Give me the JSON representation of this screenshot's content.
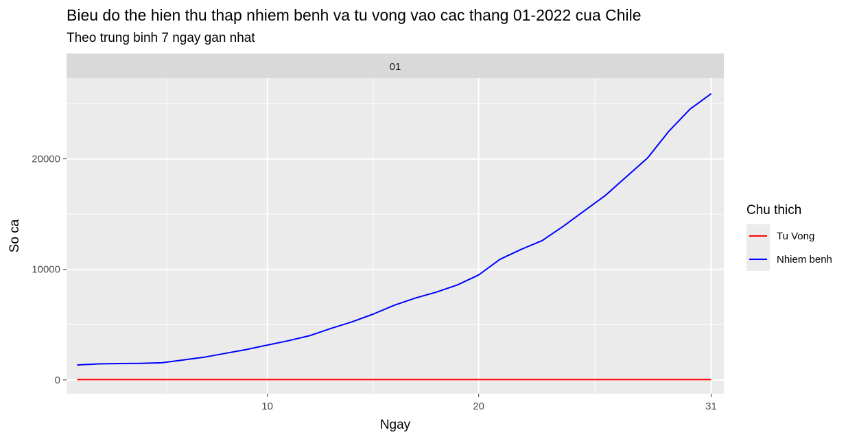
{
  "chart_data": {
    "type": "line",
    "title": "Bieu do the hien thu thap nhiem benh va tu vong vao cac thang 01-2022 cua Chile",
    "subtitle": "Theo trung binh 7 ngay gan nhat",
    "facet_label": "01",
    "xlabel": "Ngay",
    "ylabel": "So ca",
    "xlim": [
      0.5,
      31.6
    ],
    "ylim": [
      -1250,
      27300
    ],
    "x_ticks": [
      10,
      20,
      31
    ],
    "y_ticks": [
      0,
      10000,
      20000
    ],
    "grid": true,
    "legend_position": "right",
    "legend_title": "Chu thich",
    "x": [
      1,
      2,
      3,
      4,
      5,
      6,
      7,
      8,
      9,
      10,
      11,
      12,
      13,
      14,
      15,
      16,
      17,
      18,
      19,
      20,
      21,
      22,
      23,
      24,
      25,
      26,
      27,
      28,
      29,
      30,
      31
    ],
    "series": [
      {
        "name": "Tu Vong",
        "color": "#ff0000",
        "values": [
          30,
          30,
          30,
          30,
          30,
          30,
          30,
          30,
          30,
          30,
          30,
          30,
          30,
          30,
          30,
          30,
          30,
          30,
          30,
          30,
          30,
          30,
          30,
          30,
          30,
          30,
          30,
          30,
          30,
          30,
          30
        ]
      },
      {
        "name": "Nhiem benh",
        "color": "#0000ff",
        "values": [
          1350,
          1450,
          1480,
          1500,
          1550,
          1800,
          2050,
          2400,
          2750,
          3150,
          3550,
          4000,
          4650,
          5250,
          5950,
          6750,
          7400,
          7950,
          8600,
          9500,
          10900,
          11800,
          12600,
          13900,
          15300,
          16700,
          18400,
          20100,
          22500,
          24500,
          25900
        ]
      }
    ]
  }
}
